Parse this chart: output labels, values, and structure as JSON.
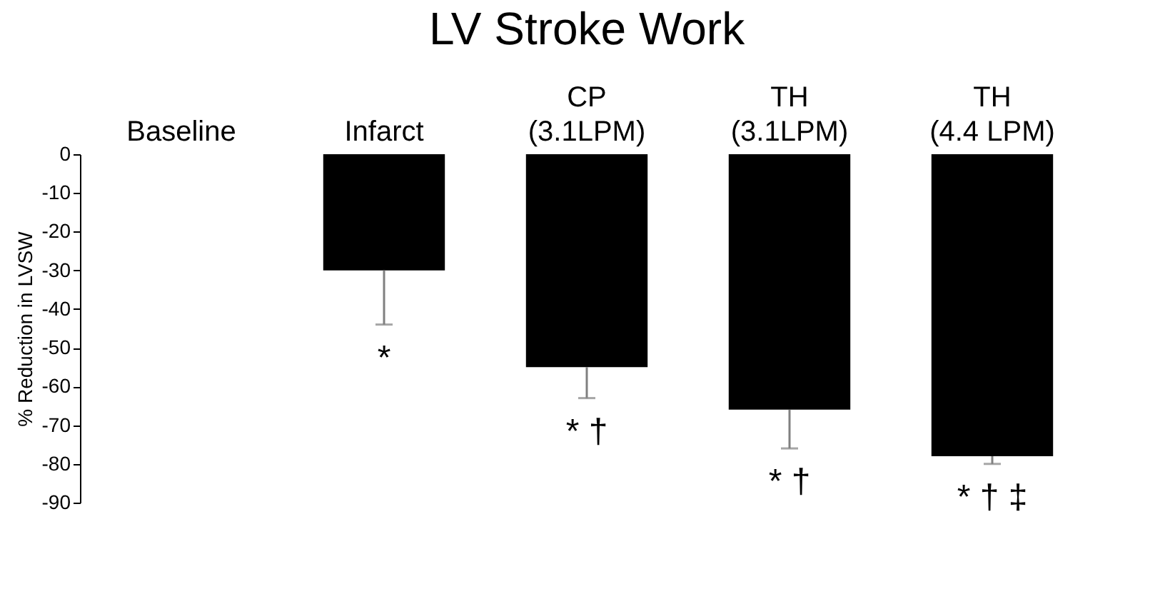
{
  "chart_data": {
    "type": "bar",
    "title": "LV Stroke Work",
    "ylabel": "% Reduction in LVSW",
    "categories": [
      "Baseline",
      "Infarct",
      "CP (3.1LPM)",
      "TH (3.1LPM)",
      "TH (4.4 LPM)"
    ],
    "values": [
      0,
      -30,
      -55,
      -66,
      -78
    ],
    "errors": [
      null,
      [
        -44,
        -30
      ],
      [
        -63,
        -55
      ],
      [
        -76,
        -66
      ],
      [
        -80,
        -78
      ]
    ],
    "color": "#000000",
    "ylim": [
      -90,
      0
    ],
    "yticks": [
      0,
      -10,
      -20,
      -30,
      -40,
      -50,
      -60,
      -70,
      -80,
      -90
    ],
    "grid": false,
    "annotations": [
      "*",
      "* †",
      "* †",
      "* † ‡"
    ]
  }
}
